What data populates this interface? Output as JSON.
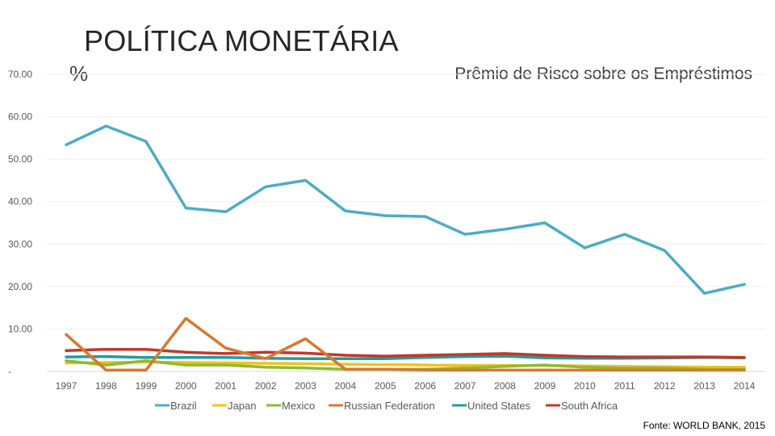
{
  "slide": {
    "title": "POLÍTICA MONETÁRIA",
    "source": "Fonte: WORLD BANK, 2015"
  },
  "chart_data": {
    "type": "line",
    "title": "Prêmio de Risco sobre os Empréstimos",
    "ylabel": "%",
    "xlabel": "",
    "ylim": [
      0,
      70
    ],
    "y_ticks": [
      0,
      10,
      20,
      30,
      40,
      50,
      60,
      70
    ],
    "y_tick_labels": [
      "-",
      "10.00",
      "20.00",
      "30.00",
      "40.00",
      "50.00",
      "60.00",
      "70.00"
    ],
    "categories": [
      "1997",
      "1998",
      "1999",
      "2000",
      "2001",
      "2002",
      "2003",
      "2004",
      "2005",
      "2006",
      "2007",
      "2008",
      "2009",
      "2010",
      "2011",
      "2012",
      "2013",
      "2014"
    ],
    "grid": true,
    "legend_position": "bottom",
    "series": [
      {
        "name": "Brazil",
        "color": "#4bacc6",
        "values": [
          53.4,
          57.8,
          54.2,
          38.5,
          37.6,
          43.5,
          45.0,
          37.8,
          36.7,
          36.5,
          32.3,
          33.5,
          35.0,
          29.1,
          32.3,
          28.5,
          18.4,
          20.5
        ]
      },
      {
        "name": "Japan",
        "color": "#f0c419",
        "values": [
          2.0,
          2.1,
          2.2,
          2.1,
          2.0,
          1.9,
          1.8,
          1.7,
          1.6,
          1.5,
          1.4,
          1.4,
          1.4,
          1.3,
          1.2,
          1.1,
          1.0,
          1.0
        ]
      },
      {
        "name": "Mexico",
        "color": "#8dbb33",
        "values": [
          2.5,
          1.5,
          2.5,
          1.5,
          1.5,
          1.0,
          0.8,
          0.5,
          0.5,
          0.5,
          0.8,
          1.2,
          1.5,
          1.0,
          0.8,
          0.8,
          0.5,
          0.5
        ]
      },
      {
        "name": "Russian Federation",
        "color": "#d9782c",
        "values": [
          8.7,
          0.3,
          0.3,
          12.5,
          5.5,
          3.0,
          7.7,
          0.5,
          0.5,
          0.3,
          0.3,
          0.3,
          0.3,
          0.3,
          0.3,
          0.3,
          0.3,
          0.3
        ]
      },
      {
        "name": "United States",
        "color": "#1f9e9e",
        "values": [
          3.4,
          3.5,
          3.3,
          3.3,
          3.3,
          3.1,
          3.0,
          3.0,
          3.0,
          3.3,
          3.5,
          3.6,
          3.2,
          3.1,
          3.1,
          3.2,
          3.3,
          3.2
        ]
      },
      {
        "name": "South Africa",
        "color": "#c0392b",
        "values": [
          4.9,
          5.2,
          5.2,
          4.5,
          4.2,
          4.5,
          4.3,
          3.8,
          3.6,
          3.8,
          4.0,
          4.2,
          3.8,
          3.5,
          3.4,
          3.4,
          3.4,
          3.3
        ]
      }
    ]
  }
}
